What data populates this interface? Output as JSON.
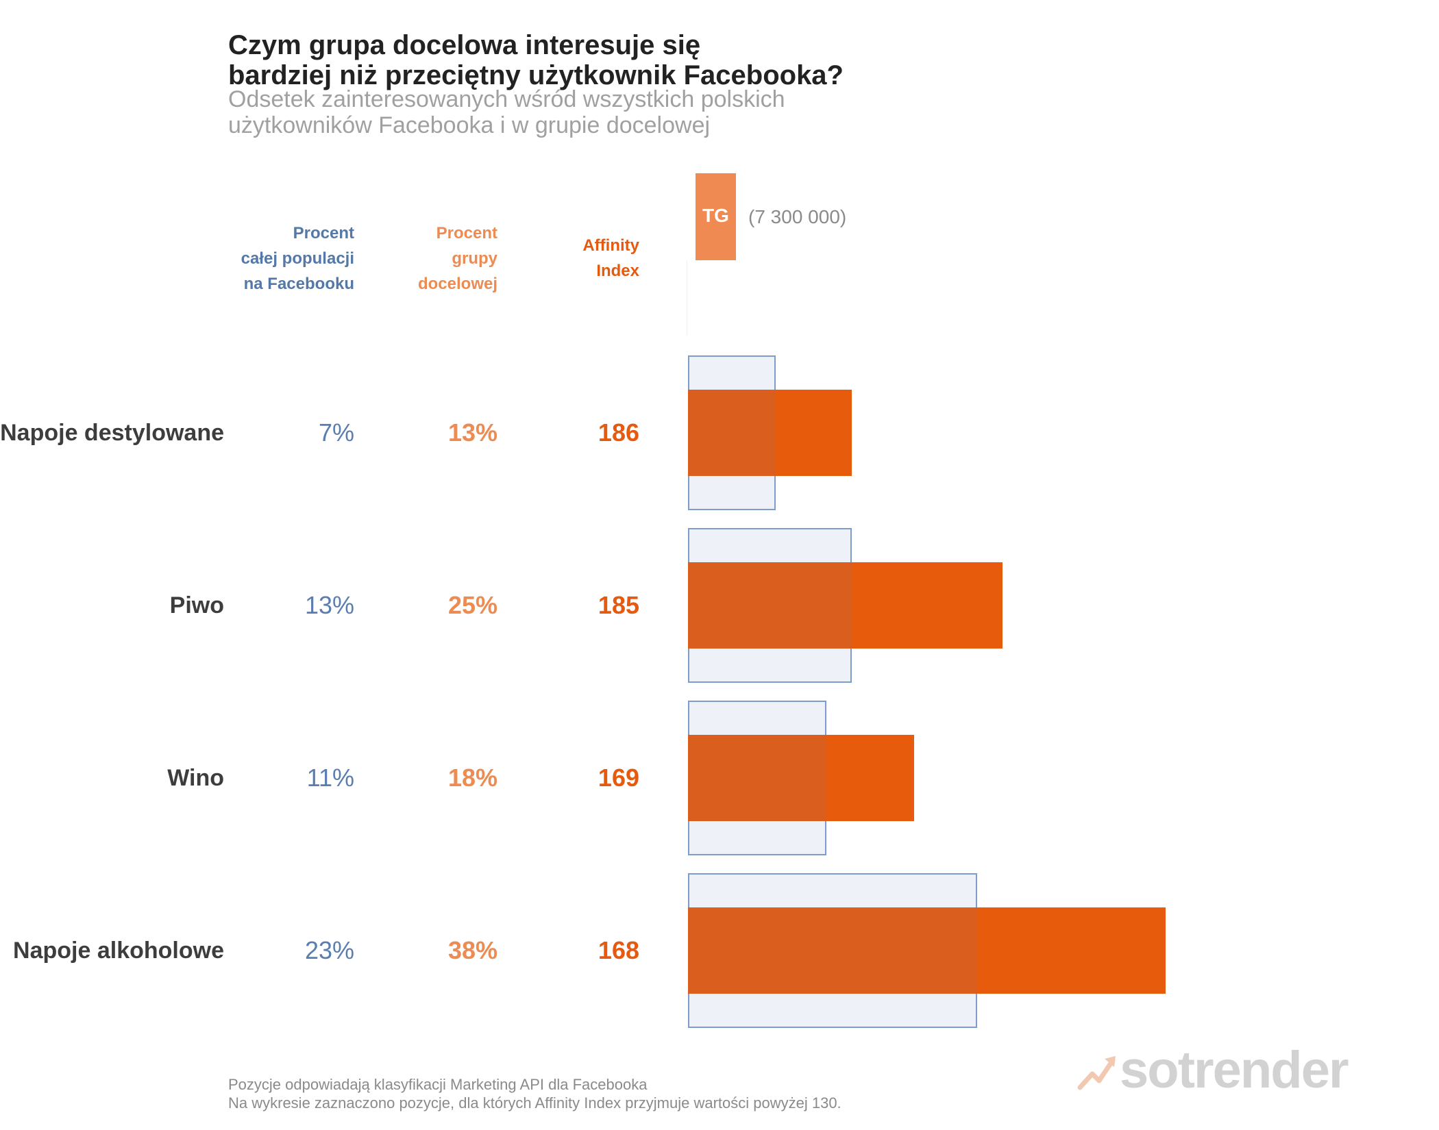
{
  "title": {
    "line1": "Czym grupa docelowa interesuje się",
    "line2": "bardziej niż przeciętny użytkownik Facebooka?"
  },
  "subtitle": {
    "line1": "Odsetek zainteresowanych wśród wszystkich polskich",
    "line2": "użytkowników Facebooka i w grupie docelowej"
  },
  "headers": {
    "population": [
      "Procent",
      "całej populacji",
      "na Facebooku"
    ],
    "target_group": [
      "Procent",
      "grupy",
      "docelowej"
    ],
    "affinity": [
      "Affinity",
      "Index"
    ]
  },
  "legend": {
    "tg_label": "TG",
    "tg_size": "(7 300 000)"
  },
  "colors": {
    "population": "#5478a8",
    "target_group": "#ec8b52",
    "affinity": "#e65a0f",
    "bar_tg": "#e75b0c",
    "bar_population_fill": "#eef1f7",
    "bar_population_border": "#7d9ccc"
  },
  "chart_data": {
    "type": "bar",
    "orientation": "horizontal",
    "categories": [
      "Napoje destylowane",
      "Piwo",
      "Wino",
      "Napoje alkoholowe"
    ],
    "series": [
      {
        "name": "Procent całej populacji na Facebooku",
        "values": [
          7,
          13,
          11,
          23
        ],
        "labels": [
          "7%",
          "13%",
          "11%",
          "23%"
        ]
      },
      {
        "name": "Procent grupy docelowej",
        "values": [
          13,
          25,
          18,
          38
        ],
        "labels": [
          "13%",
          "25%",
          "18%",
          "38%"
        ]
      }
    ],
    "affinity_index": [
      186,
      185,
      169,
      168
    ],
    "xlim": [
      0,
      38
    ],
    "title": "Czym grupa docelowa interesuje się bardziej niż przeciętny użytkownik Facebooka?"
  },
  "footer": {
    "line1": "Pozycje odpowiadają klasyfikacji Marketing API dla Facebooka",
    "line2": "Na wykresie zaznaczono pozycje, dla których Affinity Index przyjmuje wartości powyżej 130."
  },
  "logo": {
    "text": "sotrender",
    "icon": "trend-arrow-icon"
  }
}
